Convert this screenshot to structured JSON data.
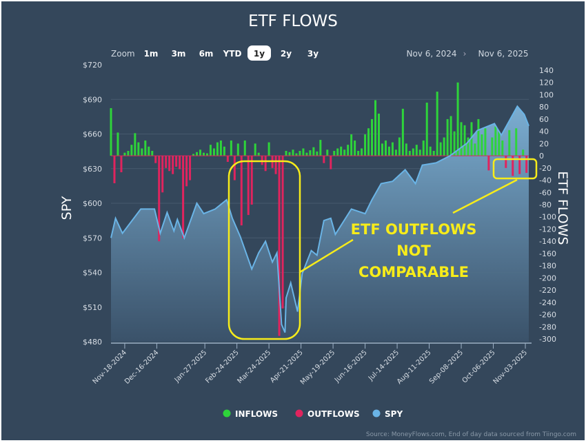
{
  "header": {
    "title": "ETF FLOWS"
  },
  "range_selector": {
    "zoom_label": "Zoom",
    "buttons": [
      {
        "label": "1m",
        "selected": false
      },
      {
        "label": "3m",
        "selected": false
      },
      {
        "label": "6m",
        "selected": false
      },
      {
        "label": "YTD",
        "selected": false
      },
      {
        "label": "1y",
        "selected": true
      },
      {
        "label": "2y",
        "selected": false
      },
      {
        "label": "3y",
        "selected": false
      }
    ],
    "from": "Nov 6, 2024",
    "arrow": "›",
    "to": "Nov 6, 2025"
  },
  "legend": [
    {
      "label": "INFLOWS",
      "color": "#2ed43a"
    },
    {
      "label": "OUTFLOWS",
      "color": "#e0245e"
    },
    {
      "label": "SPY",
      "color": "#6ab4e6"
    }
  ],
  "source": "Source: MoneyFlows.com, End of day data sourced from Tiingo.com",
  "annotation": {
    "lines": [
      "ETF OUTFLOWS",
      "NOT",
      "COMPARABLE"
    ],
    "color": "#f7ec1a"
  },
  "chart_data": {
    "type": "bar+area",
    "title": "ETF FLOWS",
    "xlim": [
      "2024-11-06",
      "2025-11-06"
    ],
    "x_ticks": [
      "Nov-18-2024",
      "Dec-16-2024",
      "Jan-27-2025",
      "Feb-24-2025",
      "Mar-24-2025",
      "Apr-21-2025",
      "May-19-2025",
      "Jun-16-2025",
      "Jul-14-2025",
      "Aug-11-2025",
      "Sep-08-2025",
      "Oct-06-2025",
      "Nov-03-2025"
    ],
    "x_tick_dates": [
      "2024-11-18",
      "2024-12-16",
      "2025-01-27",
      "2025-02-24",
      "2025-03-24",
      "2025-04-21",
      "2025-05-19",
      "2025-06-16",
      "2025-07-14",
      "2025-08-11",
      "2025-09-08",
      "2025-10-06",
      "2025-11-03"
    ],
    "y_left": {
      "label": "SPY",
      "ylim": [
        480,
        720
      ],
      "ticks": [
        "$720",
        "$690",
        "$660",
        "$630",
        "$600",
        "$570",
        "$540",
        "$510",
        "$480"
      ],
      "tick_values": [
        720,
        690,
        660,
        630,
        600,
        570,
        540,
        510,
        480
      ]
    },
    "y_right": {
      "label": "ETF FLOWS",
      "ylim": [
        -300,
        140
      ],
      "ticks": [
        140,
        120,
        100,
        80,
        60,
        40,
        20,
        0,
        -20,
        -40,
        -60,
        -80,
        -100,
        -120,
        -140,
        -160,
        -180,
        -200,
        -220,
        -240,
        -260,
        -280,
        -300
      ]
    },
    "grid": true,
    "legend_position": "bottom",
    "spy": [
      [
        "2024-11-06",
        570
      ],
      [
        "2024-11-10",
        587
      ],
      [
        "2024-11-16",
        574
      ],
      [
        "2024-12-02",
        595
      ],
      [
        "2024-12-14",
        595
      ],
      [
        "2024-12-19",
        574
      ],
      [
        "2024-12-25",
        592
      ],
      [
        "2024-12-31",
        576
      ],
      [
        "2025-01-03",
        586
      ],
      [
        "2025-01-09",
        570
      ],
      [
        "2025-01-20",
        600
      ],
      [
        "2025-01-26",
        591
      ],
      [
        "2025-02-05",
        595
      ],
      [
        "2025-02-15",
        603
      ],
      [
        "2025-02-20",
        587
      ],
      [
        "2025-02-27",
        571
      ],
      [
        "2025-03-09",
        543
      ],
      [
        "2025-03-15",
        557
      ],
      [
        "2025-03-21",
        567
      ],
      [
        "2025-03-27",
        549
      ],
      [
        "2025-03-31",
        557
      ],
      [
        "2025-04-04",
        495
      ],
      [
        "2025-04-07",
        488
      ],
      [
        "2025-04-08",
        518
      ],
      [
        "2025-04-12",
        531
      ],
      [
        "2025-04-18",
        506
      ],
      [
        "2025-04-22",
        539
      ],
      [
        "2025-04-30",
        559
      ],
      [
        "2025-05-05",
        555
      ],
      [
        "2025-05-11",
        585
      ],
      [
        "2025-05-17",
        587
      ],
      [
        "2025-05-21",
        573
      ],
      [
        "2025-06-04",
        595
      ],
      [
        "2025-06-16",
        591
      ],
      [
        "2025-06-22",
        603
      ],
      [
        "2025-06-30",
        617
      ],
      [
        "2025-07-10",
        619
      ],
      [
        "2025-07-21",
        629
      ],
      [
        "2025-07-30",
        617
      ],
      [
        "2025-08-05",
        633
      ],
      [
        "2025-08-17",
        635
      ],
      [
        "2025-08-29",
        641
      ],
      [
        "2025-09-13",
        652
      ],
      [
        "2025-09-22",
        663
      ],
      [
        "2025-10-07",
        669
      ],
      [
        "2025-10-13",
        659
      ],
      [
        "2025-10-27",
        684
      ],
      [
        "2025-11-02",
        677
      ],
      [
        "2025-11-06",
        667
      ]
    ],
    "flows": [
      [
        "2024-11-06",
        78
      ],
      [
        "2024-11-09",
        -45
      ],
      [
        "2024-11-12",
        38
      ],
      [
        "2024-11-15",
        -27
      ],
      [
        "2024-11-18",
        5
      ],
      [
        "2024-11-21",
        8
      ],
      [
        "2024-11-24",
        18
      ],
      [
        "2024-11-27",
        37
      ],
      [
        "2024-11-30",
        22
      ],
      [
        "2024-12-03",
        12
      ],
      [
        "2024-12-06",
        25
      ],
      [
        "2024-12-09",
        15
      ],
      [
        "2024-12-12",
        8
      ],
      [
        "2024-12-15",
        -12
      ],
      [
        "2024-12-18",
        -140
      ],
      [
        "2024-12-21",
        -60
      ],
      [
        "2024-12-24",
        -20
      ],
      [
        "2024-12-27",
        -25
      ],
      [
        "2024-12-30",
        -30
      ],
      [
        "2025-01-02",
        -18
      ],
      [
        "2025-01-05",
        -22
      ],
      [
        "2025-01-08",
        -135
      ],
      [
        "2025-01-11",
        -50
      ],
      [
        "2025-01-14",
        -40
      ],
      [
        "2025-01-17",
        3
      ],
      [
        "2025-01-20",
        6
      ],
      [
        "2025-01-23",
        10
      ],
      [
        "2025-01-26",
        5
      ],
      [
        "2025-01-29",
        4
      ],
      [
        "2025-02-01",
        18
      ],
      [
        "2025-02-04",
        12
      ],
      [
        "2025-02-07",
        22
      ],
      [
        "2025-02-10",
        25
      ],
      [
        "2025-02-13",
        15
      ],
      [
        "2025-02-16",
        -10
      ],
      [
        "2025-02-19",
        25
      ],
      [
        "2025-02-22",
        -40
      ],
      [
        "2025-02-25",
        20
      ],
      [
        "2025-02-28",
        -114
      ],
      [
        "2025-03-03",
        25
      ],
      [
        "2025-03-06",
        -97
      ],
      [
        "2025-03-09",
        -80
      ],
      [
        "2025-03-12",
        20
      ],
      [
        "2025-03-15",
        5
      ],
      [
        "2025-03-18",
        -15
      ],
      [
        "2025-03-21",
        -25
      ],
      [
        "2025-03-24",
        22
      ],
      [
        "2025-03-27",
        -20
      ],
      [
        "2025-03-30",
        -30
      ],
      [
        "2025-04-02",
        -295
      ],
      [
        "2025-04-05",
        -250
      ],
      [
        "2025-04-08",
        8
      ],
      [
        "2025-04-11",
        6
      ],
      [
        "2025-04-14",
        10
      ],
      [
        "2025-04-17",
        4
      ],
      [
        "2025-04-20",
        8
      ],
      [
        "2025-04-23",
        12
      ],
      [
        "2025-04-26",
        5
      ],
      [
        "2025-04-29",
        9
      ],
      [
        "2025-05-02",
        14
      ],
      [
        "2025-05-05",
        7
      ],
      [
        "2025-05-08",
        26
      ],
      [
        "2025-05-11",
        -12
      ],
      [
        "2025-05-14",
        10
      ],
      [
        "2025-05-17",
        -22
      ],
      [
        "2025-05-20",
        8
      ],
      [
        "2025-05-23",
        12
      ],
      [
        "2025-05-26",
        15
      ],
      [
        "2025-05-29",
        10
      ],
      [
        "2025-06-01",
        18
      ],
      [
        "2025-06-04",
        35
      ],
      [
        "2025-06-07",
        25
      ],
      [
        "2025-06-10",
        8
      ],
      [
        "2025-06-13",
        12
      ],
      [
        "2025-06-16",
        35
      ],
      [
        "2025-06-19",
        45
      ],
      [
        "2025-06-22",
        60
      ],
      [
        "2025-06-25",
        91
      ],
      [
        "2025-06-28",
        69
      ],
      [
        "2025-07-01",
        20
      ],
      [
        "2025-07-04",
        25
      ],
      [
        "2025-07-07",
        15
      ],
      [
        "2025-07-10",
        22
      ],
      [
        "2025-07-13",
        10
      ],
      [
        "2025-07-16",
        30
      ],
      [
        "2025-07-19",
        77
      ],
      [
        "2025-07-22",
        20
      ],
      [
        "2025-07-25",
        8
      ],
      [
        "2025-07-28",
        12
      ],
      [
        "2025-07-31",
        18
      ],
      [
        "2025-08-03",
        10
      ],
      [
        "2025-08-06",
        25
      ],
      [
        "2025-08-09",
        87
      ],
      [
        "2025-08-12",
        15
      ],
      [
        "2025-08-15",
        8
      ],
      [
        "2025-08-18",
        105
      ],
      [
        "2025-08-21",
        22
      ],
      [
        "2025-08-24",
        30
      ],
      [
        "2025-08-27",
        60
      ],
      [
        "2025-08-30",
        65
      ],
      [
        "2025-09-02",
        40
      ],
      [
        "2025-09-05",
        120
      ],
      [
        "2025-09-08",
        55
      ],
      [
        "2025-09-11",
        50
      ],
      [
        "2025-09-14",
        30
      ],
      [
        "2025-09-17",
        55
      ],
      [
        "2025-09-20",
        20
      ],
      [
        "2025-09-23",
        60
      ],
      [
        "2025-09-26",
        35
      ],
      [
        "2025-09-29",
        45
      ],
      [
        "2025-10-02",
        -24
      ],
      [
        "2025-10-05",
        30
      ],
      [
        "2025-10-08",
        48
      ],
      [
        "2025-10-11",
        40
      ],
      [
        "2025-10-14",
        25
      ],
      [
        "2025-10-17",
        -20
      ],
      [
        "2025-10-20",
        42
      ],
      [
        "2025-10-23",
        -33
      ],
      [
        "2025-10-26",
        45
      ],
      [
        "2025-10-29",
        -30
      ],
      [
        "2025-11-01",
        10
      ],
      [
        "2025-11-04",
        -28
      ]
    ]
  }
}
